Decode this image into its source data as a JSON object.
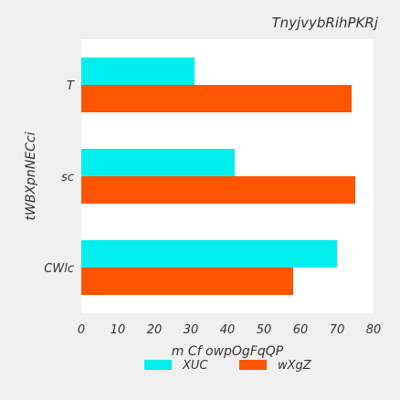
{
  "chart_data": {
    "type": "bar",
    "orientation": "horizontal",
    "title": "TnyjvybRihPKRj",
    "xlabel": "m Cf owpOgFqQP",
    "ylabel": "tWBXpnNECci",
    "categories": [
      "CWlc",
      "sc",
      "T"
    ],
    "series": [
      {
        "name": "XUC",
        "color": "#00eeee",
        "values": [
          70,
          42,
          31
        ]
      },
      {
        "name": "wXgZ",
        "color": "#ff5500",
        "values": [
          58,
          75,
          74
        ]
      }
    ],
    "xlim": [
      0,
      80
    ],
    "xticks": [
      0,
      10,
      20,
      30,
      40,
      50,
      60,
      70,
      80
    ],
    "grid": false,
    "legend_position": "bottom"
  }
}
